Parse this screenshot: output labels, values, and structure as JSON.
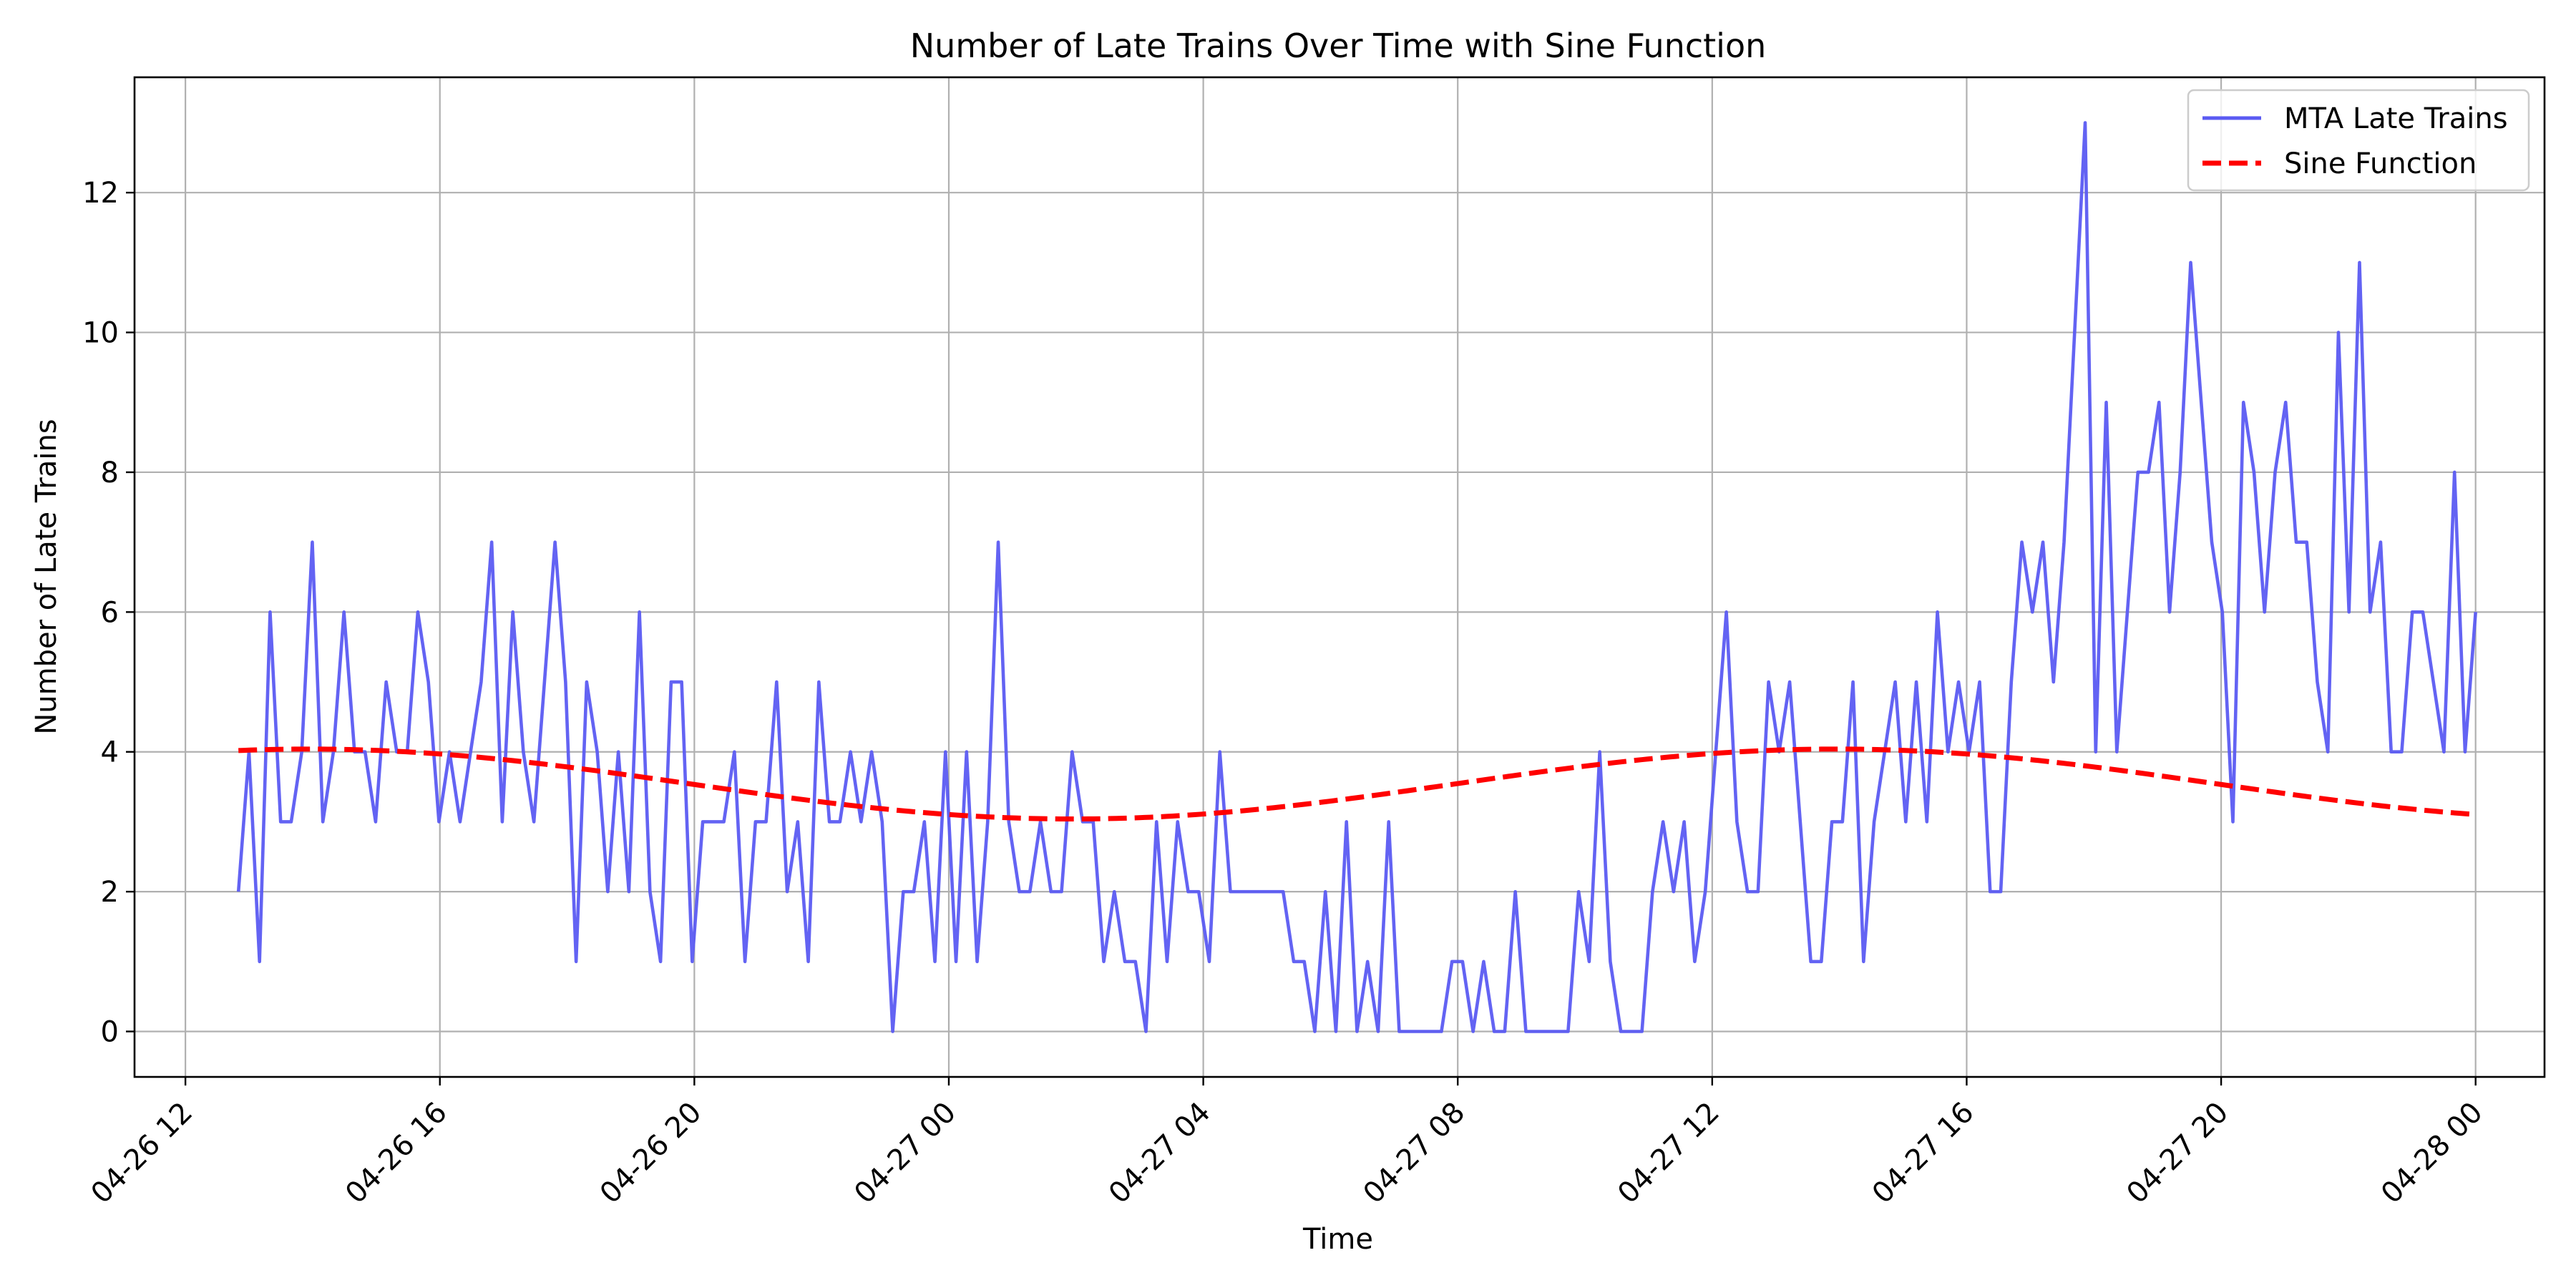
{
  "chart_data": {
    "type": "line",
    "title": "Number of Late Trains Over Time with Sine Function",
    "xlabel": "Time",
    "ylabel": "Number of Late Trains",
    "grid": true,
    "legend_position": "top-right",
    "xlim": [
      "2026-04-26 11:12",
      "2026-04-28 01:05"
    ],
    "ylim": [
      -0.65,
      13.65
    ],
    "x_ticks": [
      {
        "value": "2026-04-26 12:00",
        "label": "04-26 12"
      },
      {
        "value": "2026-04-26 16:00",
        "label": "04-26 16"
      },
      {
        "value": "2026-04-26 20:00",
        "label": "04-26 20"
      },
      {
        "value": "2026-04-27 00:00",
        "label": "04-27 00"
      },
      {
        "value": "2026-04-27 04:00",
        "label": "04-27 04"
      },
      {
        "value": "2026-04-27 08:00",
        "label": "04-27 08"
      },
      {
        "value": "2026-04-27 12:00",
        "label": "04-27 12"
      },
      {
        "value": "2026-04-27 16:00",
        "label": "04-27 16"
      },
      {
        "value": "2026-04-27 20:00",
        "label": "04-27 20"
      },
      {
        "value": "2026-04-28 00:00",
        "label": "04-28 00"
      }
    ],
    "y_ticks": [
      {
        "value": 0,
        "label": "0"
      },
      {
        "value": 2,
        "label": "2"
      },
      {
        "value": 4,
        "label": "4"
      },
      {
        "value": 6,
        "label": "6"
      },
      {
        "value": 8,
        "label": "8"
      },
      {
        "value": 10,
        "label": "10"
      },
      {
        "value": 12,
        "label": "12"
      }
    ],
    "x_start": "2026-04-26 12:50",
    "x_end": "2026-04-28 00:00",
    "series": [
      {
        "name": "MTA Late Trains",
        "color": "#5b5bf2",
        "style": "solid",
        "values": [
          2,
          4,
          1,
          6,
          3,
          3,
          4,
          7,
          3,
          4,
          6,
          4,
          4,
          3,
          5,
          4,
          4,
          6,
          5,
          3,
          4,
          3,
          4,
          5,
          7,
          3,
          6,
          4,
          3,
          5,
          7,
          5,
          1,
          5,
          4,
          2,
          4,
          2,
          6,
          2,
          1,
          5,
          5,
          1,
          3,
          3,
          3,
          4,
          1,
          3,
          3,
          5,
          2,
          3,
          1,
          5,
          3,
          3,
          4,
          3,
          4,
          3,
          0,
          2,
          2,
          3,
          1,
          4,
          1,
          4,
          1,
          3,
          7,
          3,
          2,
          2,
          3,
          2,
          2,
          4,
          3,
          3,
          1,
          2,
          1,
          1,
          0,
          3,
          1,
          3,
          2,
          2,
          1,
          4,
          2,
          2,
          2,
          2,
          2,
          2,
          1,
          1,
          0,
          2,
          0,
          3,
          0,
          1,
          0,
          3,
          0,
          0,
          0,
          0,
          0,
          1,
          1,
          0,
          1,
          0,
          0,
          2,
          0,
          0,
          0,
          0,
          0,
          2,
          1,
          4,
          1,
          0,
          0,
          0,
          2,
          3,
          2,
          3,
          1,
          2,
          4,
          6,
          3,
          2,
          2,
          5,
          4,
          5,
          3,
          1,
          1,
          3,
          3,
          5,
          1,
          3,
          4,
          5,
          3,
          5,
          3,
          6,
          4,
          5,
          4,
          5,
          2,
          2,
          5,
          7,
          6,
          7,
          5,
          7,
          10,
          13,
          4,
          9,
          4,
          6,
          8,
          8,
          9,
          6,
          8,
          11,
          9,
          7,
          6,
          3,
          9,
          8,
          6,
          8,
          9,
          7,
          7,
          5,
          4,
          10,
          6,
          11,
          6,
          7,
          4,
          4,
          6,
          6,
          5,
          4,
          8,
          4,
          6
        ]
      },
      {
        "name": "Sine Function",
        "color": "#ff0000",
        "style": "dashed",
        "function": "3.54 + 0.5*sin(2*pi*(t - 2026-04-26 07:57)/24h)"
      }
    ]
  }
}
